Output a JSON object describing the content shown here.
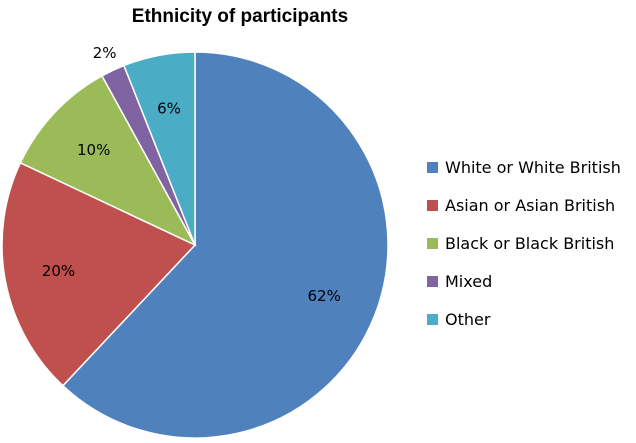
{
  "chart_data": {
    "type": "pie",
    "title": "Ethnicity of participants",
    "start_angle_deg": 0,
    "direction": "clockwise",
    "legend_position": "right",
    "slices": [
      {
        "label": "White or White British",
        "value": 62,
        "display": "62%",
        "color": "#4F81BD"
      },
      {
        "label": "Asian or Asian British",
        "value": 20,
        "display": "20%",
        "color": "#C0504D"
      },
      {
        "label": "Black or Black British",
        "value": 10,
        "display": "10%",
        "color": "#9BBB59"
      },
      {
        "label": "Mixed",
        "value": 2,
        "display": "2%",
        "color": "#8064A2"
      },
      {
        "label": "Other",
        "value": 6,
        "display": "6%",
        "color": "#4BACC6"
      }
    ]
  }
}
